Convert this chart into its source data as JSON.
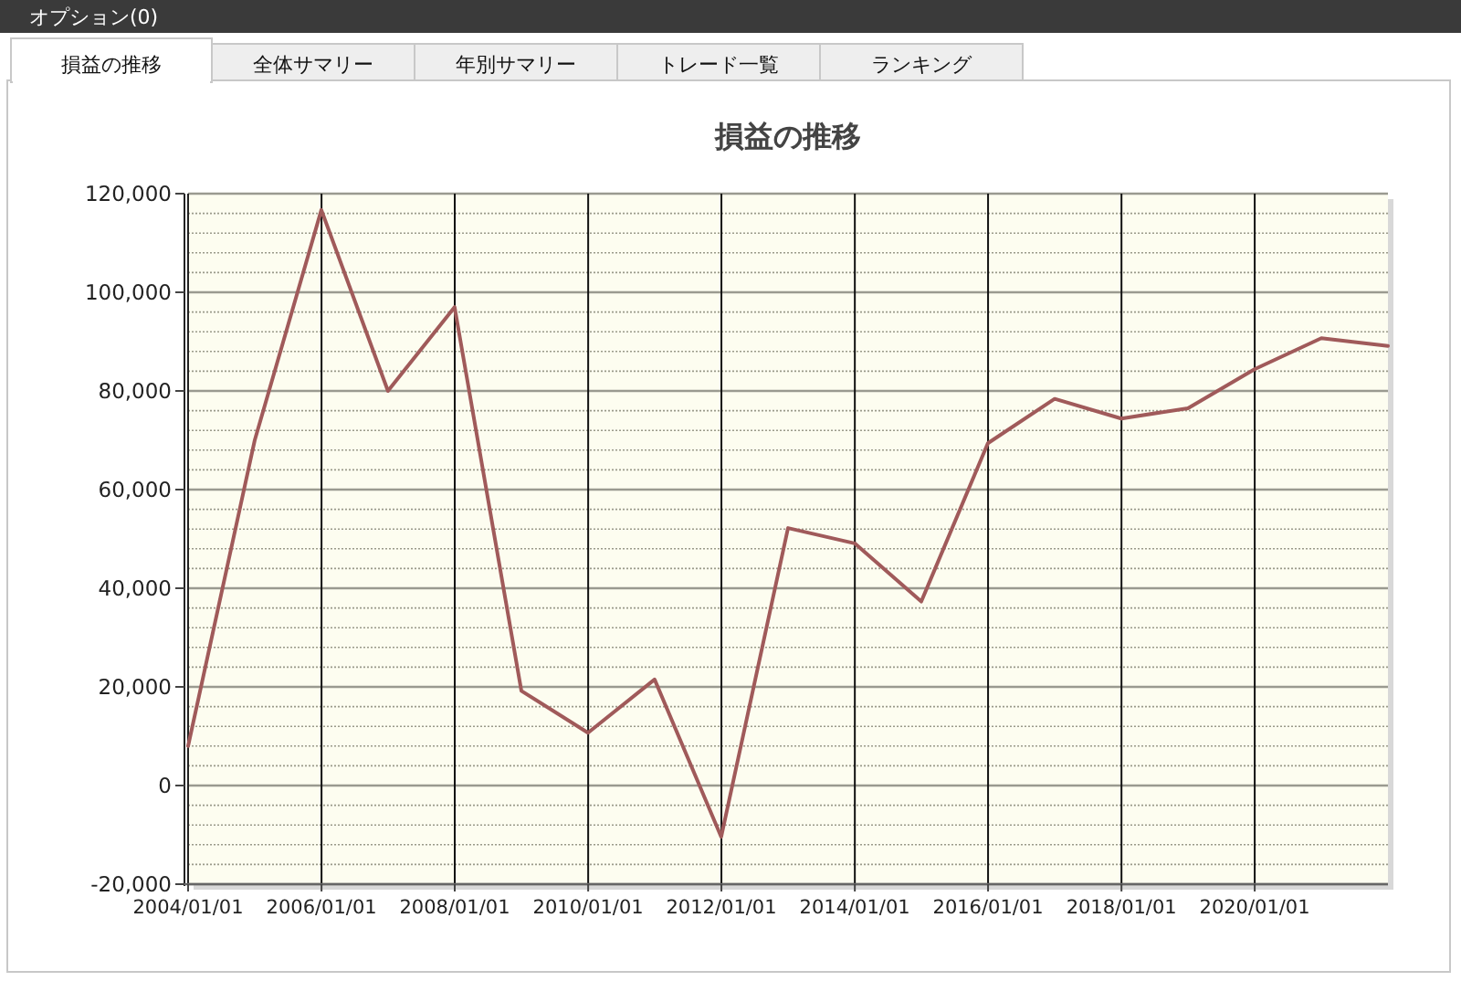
{
  "chart_data": {
    "type": "line",
    "title": "損益の推移",
    "annotations": [
      "オプション(0)",
      "損益の推移",
      "全体サマリー",
      "年別サマリー",
      "トレード一覧",
      "ランキング"
    ],
    "x": [
      "2004-01-01",
      "2004-12-31",
      "2005-12-31",
      "2006-12-31",
      "2007-12-31",
      "2008-12-31",
      "2009-12-31",
      "2010-12-31",
      "2011-12-31",
      "2012-12-31",
      "2013-12-31",
      "2014-12-31",
      "2015-12-31",
      "2016-12-31",
      "2017-12-31",
      "2018-12-31",
      "2019-12-31",
      "2020-12-31",
      "2021-12-31"
    ],
    "series": [
      {
        "color": "#a05a5a",
        "values": [
          8000,
          70000,
          116700,
          80000,
          97000,
          19200,
          10700,
          21500,
          -10400,
          52200,
          49100,
          37300,
          69400,
          78400,
          74400,
          76500,
          84400,
          90700,
          89100
        ]
      }
    ],
    "xlim": [
      "2004-01-01",
      "2021-12-31"
    ],
    "xticks": [
      {
        "value": "2004-01-01",
        "label": "2004/01/01"
      },
      {
        "value": "2006-01-01",
        "label": "2006/01/01"
      },
      {
        "value": "2008-01-01",
        "label": "2008/01/01"
      },
      {
        "value": "2010-01-01",
        "label": "2010/01/01"
      },
      {
        "value": "2012-01-01",
        "label": "2012/01/01"
      },
      {
        "value": "2014-01-01",
        "label": "2014/01/01"
      },
      {
        "value": "2016-01-01",
        "label": "2016/01/01"
      },
      {
        "value": "2018-01-01",
        "label": "2018/01/01"
      },
      {
        "value": "2020-01-01",
        "label": "2020/01/01"
      }
    ],
    "ylim": [
      -20000,
      120000
    ],
    "yticks": [
      {
        "value": -20000,
        "label": "-20,000"
      },
      0,
      {
        "value": 20000,
        "label": "20,000"
      },
      {
        "value": 40000,
        "label": "40,000"
      },
      {
        "value": 60000,
        "label": "60,000"
      },
      {
        "value": 80000,
        "label": "80,000"
      },
      {
        "value": 100000,
        "label": "100,000"
      },
      {
        "value": 120000,
        "label": "120,000"
      }
    ],
    "grid": true,
    "marker": "none",
    "line_style": "solid"
  }
}
